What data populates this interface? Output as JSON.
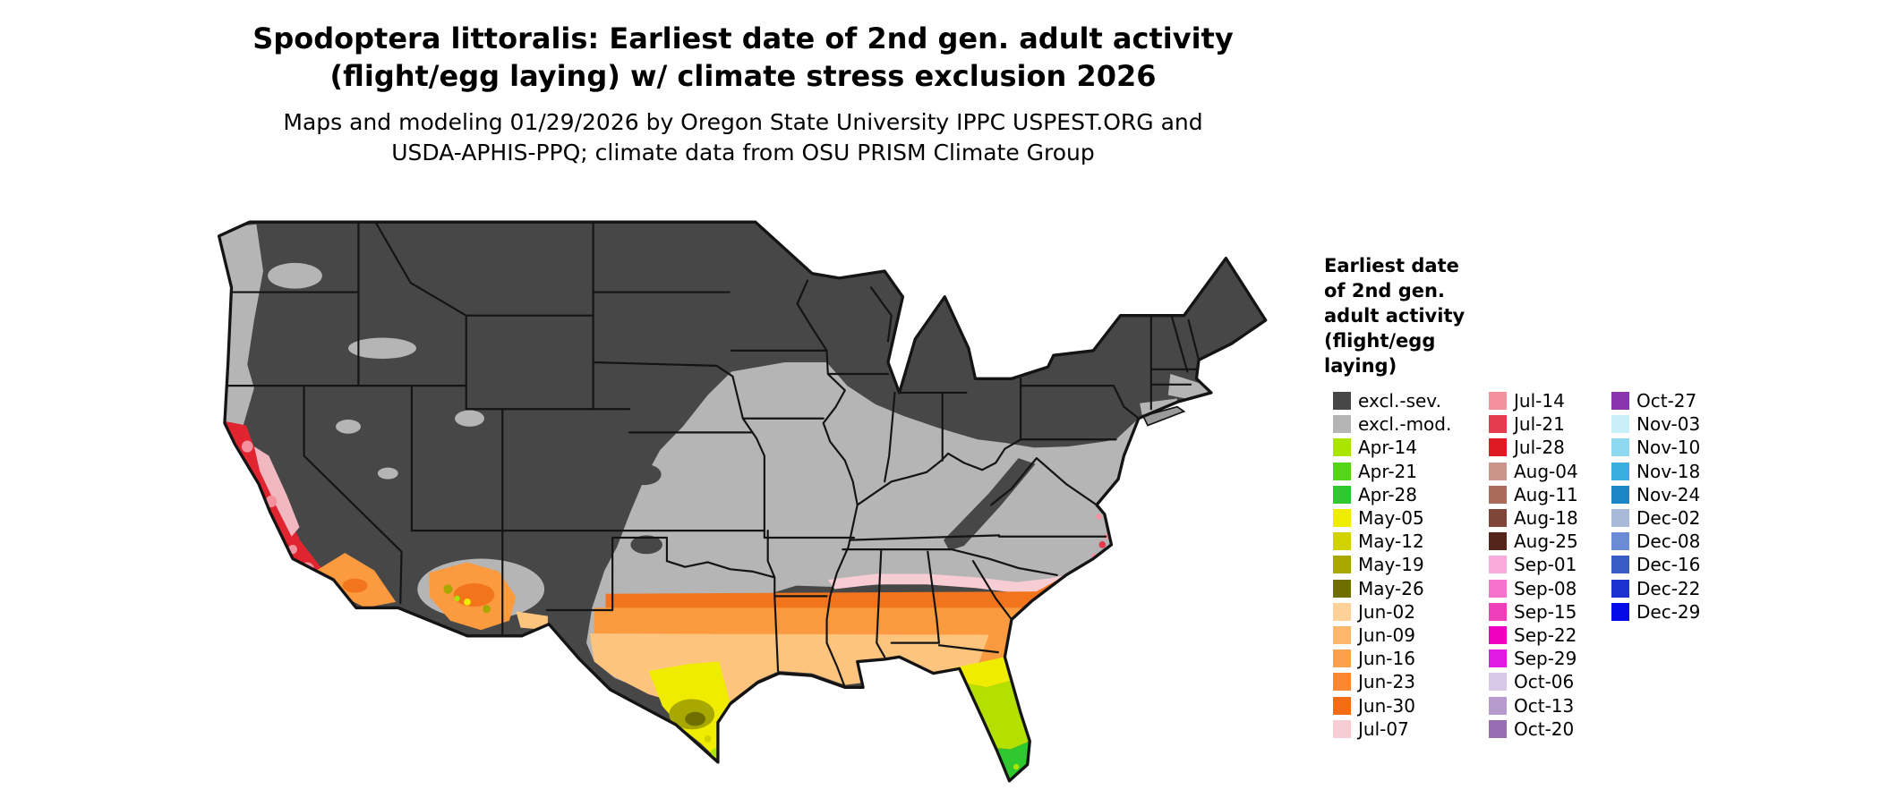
{
  "figure": {
    "title_line1": "Spodoptera littoralis: Earliest date of 2nd gen. adult activity",
    "title_line2": "(flight/egg laying) w/ climate stress exclusion 2026",
    "subtitle_line1": "Maps and modeling 01/29/2026 by Oregon State University IPPC USPEST.ORG and",
    "subtitle_line2": "USDA-APHIS-PPQ; climate data from OSU PRISM Climate Group"
  },
  "legend": {
    "title_lines": [
      "Earliest date",
      "of 2nd gen.",
      "adult activity",
      "(flight/egg",
      "laying)"
    ],
    "columns": [
      [
        {
          "label": "excl.-sev.",
          "color": "#474747"
        },
        {
          "label": "excl.-mod.",
          "color": "#b5b5b5"
        },
        {
          "label": "Apr-14",
          "color": "#aae400"
        },
        {
          "label": "Apr-21",
          "color": "#55d519"
        },
        {
          "label": "Apr-28",
          "color": "#2fc82f"
        },
        {
          "label": "May-05",
          "color": "#f0ec00"
        },
        {
          "label": "May-12",
          "color": "#d2d200"
        },
        {
          "label": "May-19",
          "color": "#a8a800"
        },
        {
          "label": "May-26",
          "color": "#6f6f00"
        },
        {
          "label": "Jun-02",
          "color": "#fdd197"
        },
        {
          "label": "Jun-09",
          "color": "#fdb76b"
        },
        {
          "label": "Jun-16",
          "color": "#fda04c"
        },
        {
          "label": "Jun-23",
          "color": "#fb8830"
        },
        {
          "label": "Jun-30",
          "color": "#f26d16"
        },
        {
          "label": "Jul-07",
          "color": "#f7cdd3"
        }
      ],
      [
        {
          "label": "Jul-14",
          "color": "#f4919e"
        },
        {
          "label": "Jul-21",
          "color": "#e63c50"
        },
        {
          "label": "Jul-28",
          "color": "#e01a24"
        },
        {
          "label": "Aug-04",
          "color": "#cb958b"
        },
        {
          "label": "Aug-11",
          "color": "#aa6b5a"
        },
        {
          "label": "Aug-18",
          "color": "#7f4536"
        },
        {
          "label": "Aug-25",
          "color": "#55241a"
        },
        {
          "label": "Sep-01",
          "color": "#f9abdb"
        },
        {
          "label": "Sep-08",
          "color": "#f573cb"
        },
        {
          "label": "Sep-15",
          "color": "#ef3eba"
        },
        {
          "label": "Sep-22",
          "color": "#f000c0"
        },
        {
          "label": "Sep-29",
          "color": "#e01ae0"
        },
        {
          "label": "Oct-06",
          "color": "#d9c9e9"
        },
        {
          "label": "Oct-13",
          "color": "#b79bce"
        },
        {
          "label": "Oct-20",
          "color": "#9a6cb4"
        }
      ],
      [
        {
          "label": "Oct-27",
          "color": "#8a35ad"
        },
        {
          "label": "Nov-03",
          "color": "#c9eff9"
        },
        {
          "label": "Nov-10",
          "color": "#8fd9f0"
        },
        {
          "label": "Nov-18",
          "color": "#3aaede"
        },
        {
          "label": "Nov-24",
          "color": "#1b86c8"
        },
        {
          "label": "Dec-02",
          "color": "#a9bad9"
        },
        {
          "label": "Dec-08",
          "color": "#6b8bd6"
        },
        {
          "label": "Dec-16",
          "color": "#3a5cc6"
        },
        {
          "label": "Dec-22",
          "color": "#1c33d2"
        },
        {
          "label": "Dec-29",
          "color": "#050ae8"
        }
      ]
    ]
  },
  "map": {
    "region": "Contiguous United States",
    "border_color": "#141414",
    "background": "#ffffff",
    "fill_summary": {
      "northern_us_and_rockies": "excl.-sev. dark gray",
      "central_band_mid_atlantic_pnw_coast": "excl.-mod. light gray",
      "gulf_coast_and_southeast_band": "June orange shades",
      "south_texas": "May yellow and olive shades",
      "central_and_south_florida": "April greens with May yellow",
      "california_coast": "July pink and red shades",
      "southern_arizona_new_mexico": "June orange shades"
    }
  }
}
